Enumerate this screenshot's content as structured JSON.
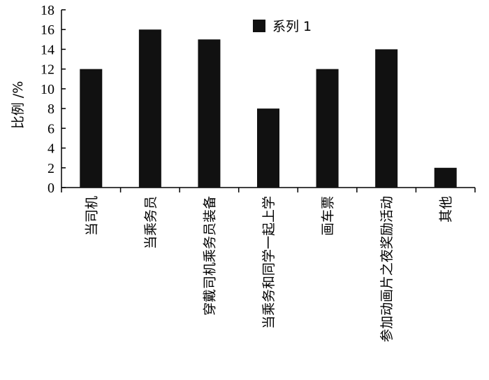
{
  "chart_data": {
    "type": "bar",
    "y_label": "比例 /%",
    "categories": [
      "当司机",
      "当乘务员",
      "穿戴司机乘务员装备",
      "当乘务和同学一起上学",
      "画车票",
      "参加动画片之夜奖励活动",
      "其他"
    ],
    "series": [
      {
        "name": "系列 1",
        "color": "#111111",
        "values": [
          12,
          16,
          15,
          8,
          12,
          14,
          2
        ]
      }
    ],
    "ylim": [
      0,
      18
    ],
    "yticks": [
      0,
      2,
      4,
      6,
      8,
      10,
      12,
      14,
      16,
      18
    ],
    "legend": "top"
  }
}
